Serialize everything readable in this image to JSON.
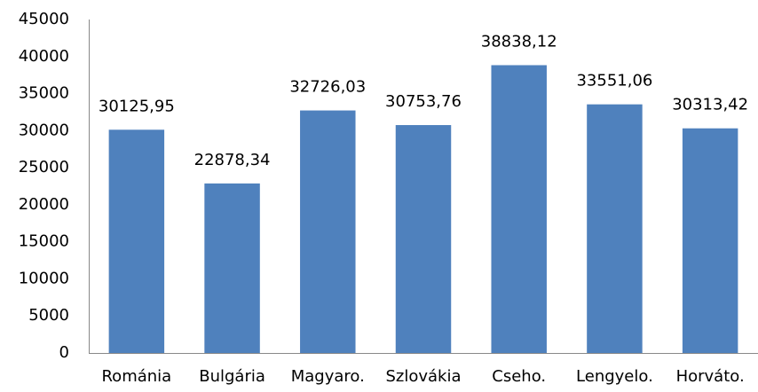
{
  "chart_data": {
    "type": "bar",
    "categories": [
      "Románia",
      "Bulgária",
      "Magyaro.",
      "Szlovákia",
      "Cseho.",
      "Lengyelo.",
      "Horváto."
    ],
    "values": [
      30125.95,
      22878.34,
      32726.03,
      30753.76,
      38838.12,
      33551.06,
      30313.42
    ],
    "value_labels": [
      "30125,95",
      "22878,34",
      "32726,03",
      "30753,76",
      "38838,12",
      "33551,06",
      "30313,42"
    ],
    "color": "#4f81bd",
    "ylim": [
      0,
      45000
    ],
    "yticks": [
      0,
      5000,
      10000,
      15000,
      20000,
      25000,
      30000,
      35000,
      40000,
      45000
    ],
    "grid": false
  }
}
